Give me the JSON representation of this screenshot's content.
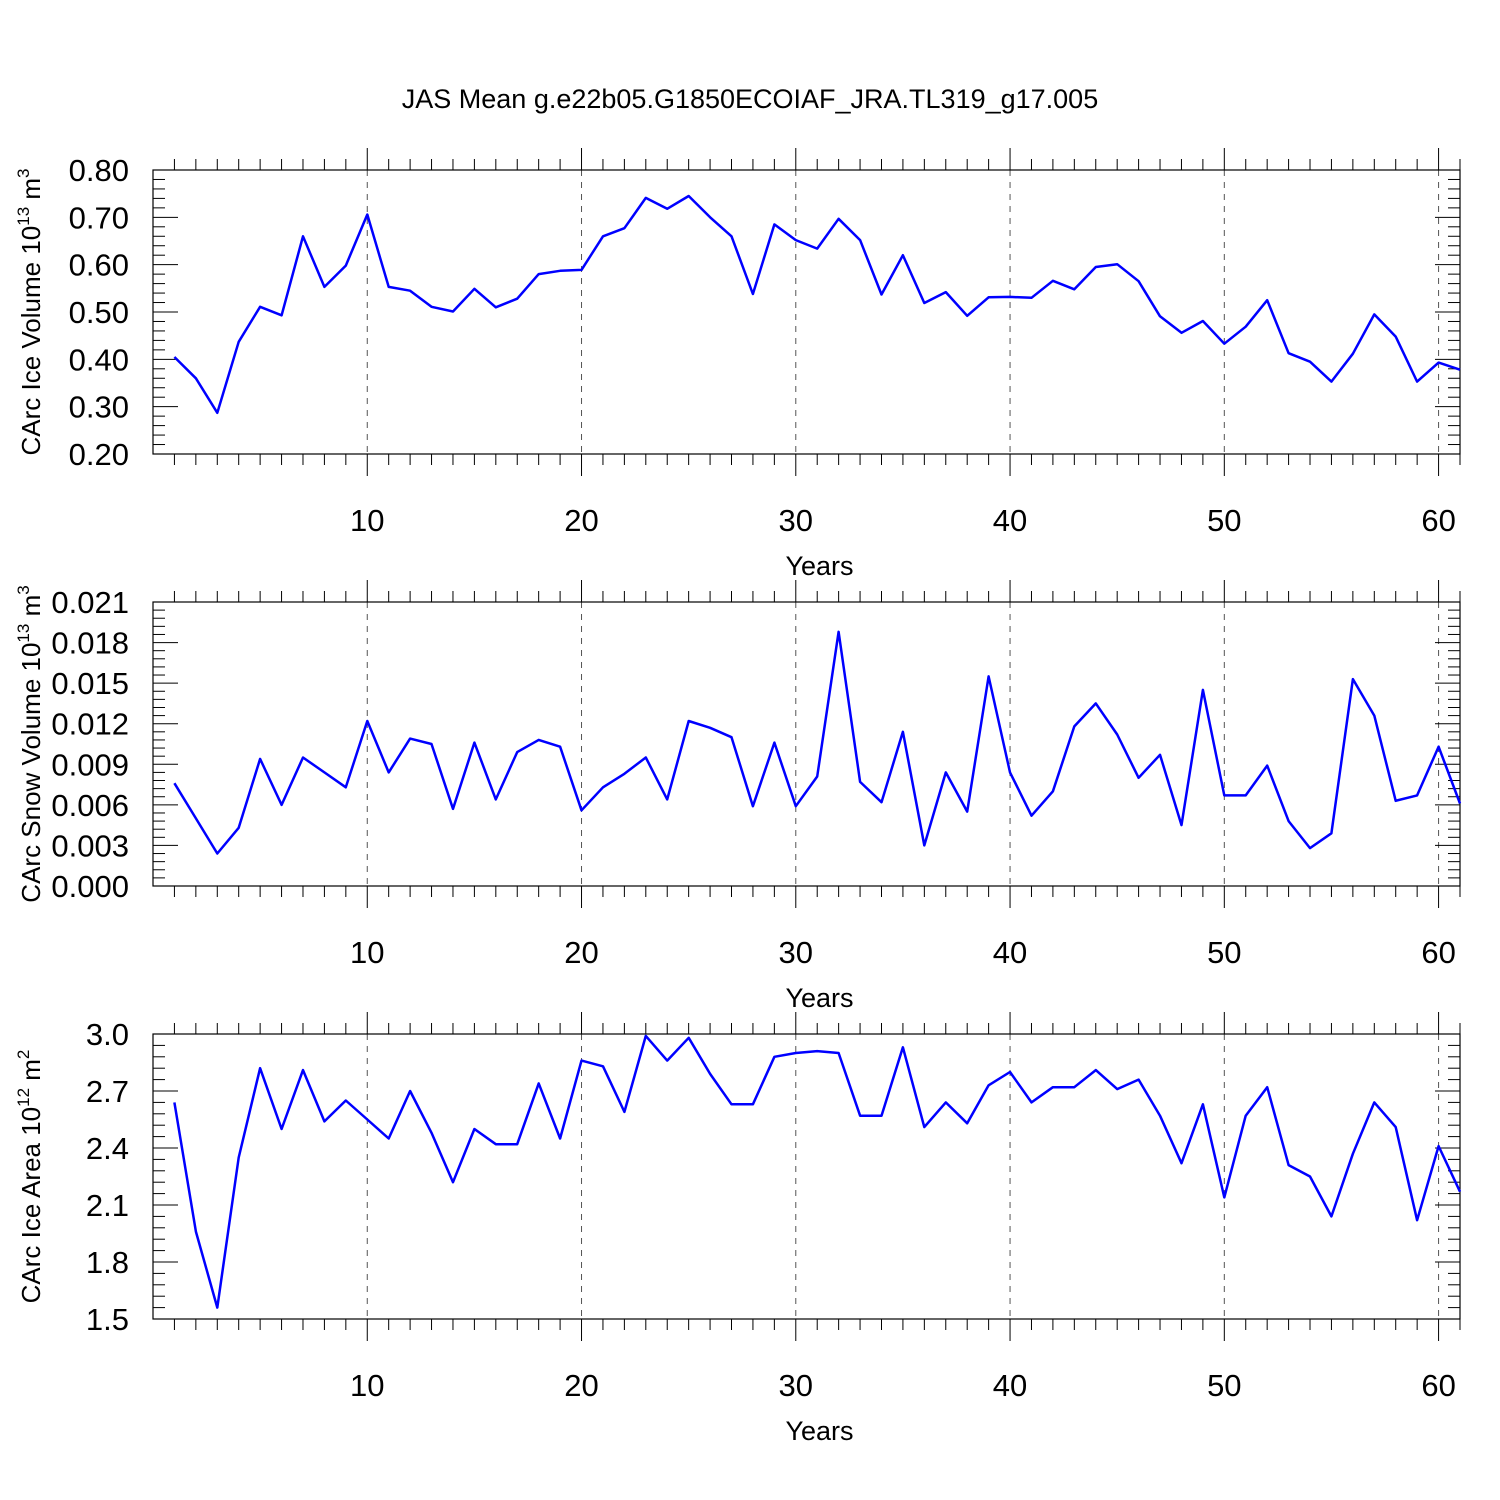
{
  "title": "JAS Mean g.e22b05.G1850ECOIAF_JRA.TL319_g17.005",
  "chart_data": [
    {
      "type": "line",
      "xlabel": "Years",
      "ylabel": "CArc Ice Volume 10",
      "ylabel_sup": "13",
      "ylabel_unit": "m",
      "ylabel_unit_sup": "3",
      "xlim": [
        1,
        61
      ],
      "ylim": [
        0.2,
        0.8
      ],
      "xticks": [
        10,
        20,
        30,
        40,
        50,
        60
      ],
      "yticks": [
        "0.20",
        "0.30",
        "0.40",
        "0.50",
        "0.60",
        "0.70",
        "0.80"
      ],
      "series_color": "#0000ff",
      "x": [
        1,
        2,
        3,
        4,
        5,
        6,
        7,
        8,
        9,
        10,
        11,
        12,
        13,
        14,
        15,
        16,
        17,
        18,
        19,
        20,
        21,
        22,
        23,
        24,
        25,
        26,
        27,
        28,
        29,
        30,
        31,
        32,
        33,
        34,
        35,
        36,
        37,
        38,
        39,
        40,
        41,
        42,
        43,
        44,
        45,
        46,
        47,
        48,
        49,
        50,
        51,
        52,
        53,
        54,
        55,
        56,
        57,
        58,
        59,
        60,
        61
      ],
      "values": [
        0.405,
        0.36,
        0.287,
        0.437,
        0.511,
        0.493,
        0.66,
        0.553,
        0.598,
        0.706,
        0.553,
        0.545,
        0.511,
        0.501,
        0.549,
        0.51,
        0.528,
        0.58,
        0.587,
        0.589,
        0.66,
        0.677,
        0.741,
        0.718,
        0.745,
        0.7,
        0.66,
        0.538,
        0.685,
        0.652,
        0.634,
        0.697,
        0.652,
        0.537,
        0.62,
        0.519,
        0.542,
        0.492,
        0.531,
        0.532,
        0.53,
        0.566,
        0.548,
        0.595,
        0.601,
        0.565,
        0.491,
        0.456,
        0.481,
        0.433,
        0.469,
        0.525,
        0.413,
        0.395,
        0.353,
        0.412,
        0.495,
        0.448,
        0.353,
        0.393,
        0.378
      ]
    },
    {
      "type": "line",
      "xlabel": "Years",
      "ylabel": "CArc Snow Volume 10",
      "ylabel_sup": "13",
      "ylabel_unit": "m",
      "ylabel_unit_sup": "3",
      "xlim": [
        1,
        61
      ],
      "ylim": [
        0.0,
        0.021
      ],
      "xticks": [
        10,
        20,
        30,
        40,
        50,
        60
      ],
      "yticks": [
        "0.000",
        "0.003",
        "0.006",
        "0.009",
        "0.012",
        "0.015",
        "0.018",
        "0.021"
      ],
      "series_color": "#0000ff",
      "x": [
        1,
        2,
        3,
        4,
        5,
        6,
        7,
        8,
        9,
        10,
        11,
        12,
        13,
        14,
        15,
        16,
        17,
        18,
        19,
        20,
        21,
        22,
        23,
        24,
        25,
        26,
        27,
        28,
        29,
        30,
        31,
        32,
        33,
        34,
        35,
        36,
        37,
        38,
        39,
        40,
        41,
        42,
        43,
        44,
        45,
        46,
        47,
        48,
        49,
        50,
        51,
        52,
        53,
        54,
        55,
        56,
        57,
        58,
        59,
        60,
        61
      ],
      "values": [
        0.0076,
        0.005,
        0.0024,
        0.0043,
        0.0094,
        0.006,
        0.0095,
        0.0084,
        0.0073,
        0.0122,
        0.0084,
        0.0109,
        0.0105,
        0.0057,
        0.0106,
        0.0064,
        0.0099,
        0.0108,
        0.0103,
        0.0056,
        0.0073,
        0.0083,
        0.0095,
        0.0064,
        0.0122,
        0.0117,
        0.011,
        0.0059,
        0.0106,
        0.0059,
        0.0081,
        0.0188,
        0.0077,
        0.0062,
        0.0114,
        0.003,
        0.0084,
        0.0055,
        0.0155,
        0.0084,
        0.0052,
        0.007,
        0.0118,
        0.0135,
        0.0112,
        0.008,
        0.0097,
        0.0045,
        0.0145,
        0.0067,
        0.0067,
        0.0089,
        0.0048,
        0.0028,
        0.0039,
        0.0153,
        0.0126,
        0.0063,
        0.0067,
        0.0103,
        0.0061
      ]
    },
    {
      "type": "line",
      "xlabel": "Years",
      "ylabel": "CArc Ice Area 10",
      "ylabel_sup": "12",
      "ylabel_unit": "m",
      "ylabel_unit_sup": "2",
      "xlim": [
        1,
        61
      ],
      "ylim": [
        1.5,
        3.0
      ],
      "xticks": [
        10,
        20,
        30,
        40,
        50,
        60
      ],
      "yticks": [
        "1.5",
        "1.8",
        "2.1",
        "2.4",
        "2.7",
        "3.0"
      ],
      "series_color": "#0000ff",
      "x": [
        1,
        2,
        3,
        4,
        5,
        6,
        7,
        8,
        9,
        10,
        11,
        12,
        13,
        14,
        15,
        16,
        17,
        18,
        19,
        20,
        21,
        22,
        23,
        24,
        25,
        26,
        27,
        28,
        29,
        30,
        31,
        32,
        33,
        34,
        35,
        36,
        37,
        38,
        39,
        40,
        41,
        42,
        43,
        44,
        45,
        46,
        47,
        48,
        49,
        50,
        51,
        52,
        53,
        54,
        55,
        56,
        57,
        58,
        59,
        60,
        61
      ],
      "values": [
        2.64,
        1.96,
        1.56,
        2.35,
        2.82,
        2.5,
        2.81,
        2.54,
        2.65,
        2.55,
        2.45,
        2.7,
        2.48,
        2.22,
        2.5,
        2.42,
        2.42,
        2.74,
        2.45,
        2.86,
        2.83,
        2.59,
        2.99,
        2.86,
        2.98,
        2.79,
        2.63,
        2.63,
        2.88,
        2.9,
        2.91,
        2.9,
        2.57,
        2.57,
        2.93,
        2.51,
        2.64,
        2.53,
        2.73,
        2.8,
        2.64,
        2.72,
        2.72,
        2.81,
        2.71,
        2.76,
        2.57,
        2.32,
        2.63,
        2.14,
        2.57,
        2.72,
        2.31,
        2.25,
        2.04,
        2.37,
        2.64,
        2.51,
        2.02,
        2.41,
        2.17
      ]
    }
  ]
}
